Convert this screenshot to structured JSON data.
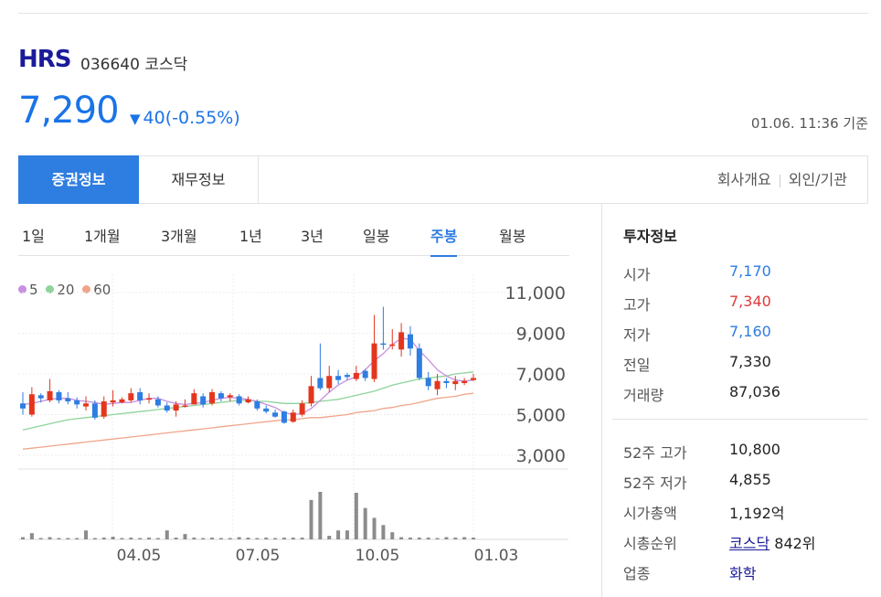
{
  "header": {
    "name": "HRS",
    "code": "036640",
    "market": "코스닥",
    "price": "7,290",
    "change_arrow": "▼",
    "change": "40(-0.55%)",
    "as_of": "01.06. 11:36 기준"
  },
  "tabs": {
    "active": "증권정보",
    "second": "재무정보",
    "right": [
      "회사개요",
      "외인/기관"
    ]
  },
  "periods": [
    "1일",
    "1개월",
    "3개월",
    "1년",
    "3년",
    "일봉",
    "주봉",
    "월봉"
  ],
  "active_period": "주봉",
  "legend": [
    {
      "label": "5",
      "color": "#c98ee0"
    },
    {
      "label": "20",
      "color": "#8ed39a"
    },
    {
      "label": "60",
      "color": "#f0a58a"
    }
  ],
  "colors": {
    "up": "#e3361d",
    "down": "#2e7de1",
    "volume": "#8c8c8c"
  },
  "chart_data": {
    "type": "candlestick",
    "x_ticks": [
      "04.05",
      "07.05",
      "10.05",
      "01.03"
    ],
    "y_ticks": [
      "11,000",
      "9,000",
      "7,000",
      "5,000",
      "3,000"
    ],
    "ylim": [
      3000,
      11000
    ],
    "candles": [
      [
        5550,
        5300,
        6100,
        5000
      ],
      [
        5000,
        6000,
        6350,
        4900
      ],
      [
        5950,
        5800,
        6050,
        5600
      ],
      [
        5700,
        6150,
        6750,
        5600
      ],
      [
        6100,
        5700,
        6200,
        5550
      ],
      [
        5800,
        5650,
        6100,
        5500
      ],
      [
        5700,
        5500,
        5850,
        5300
      ],
      [
        5400,
        5550,
        5900,
        5200
      ],
      [
        5550,
        4850,
        5700,
        4750
      ],
      [
        4900,
        5650,
        5900,
        4800
      ],
      [
        5600,
        5700,
        6200,
        5400
      ],
      [
        5600,
        5750,
        5850,
        5550
      ],
      [
        5700,
        6050,
        6300,
        5600
      ],
      [
        6100,
        5700,
        6300,
        5500
      ],
      [
        5800,
        5800,
        6050,
        5550
      ],
      [
        5750,
        5450,
        5900,
        5350
      ],
      [
        5450,
        5200,
        5600,
        5100
      ],
      [
        5200,
        5500,
        5650,
        4900
      ],
      [
        5400,
        5450,
        5750,
        5350
      ],
      [
        5500,
        6050,
        6250,
        5500
      ],
      [
        5900,
        5500,
        6050,
        5350
      ],
      [
        5550,
        6100,
        6250,
        5450
      ],
      [
        6050,
        5800,
        6150,
        5650
      ],
      [
        5850,
        5950,
        6050,
        5650
      ],
      [
        5900,
        5550,
        6000,
        5450
      ],
      [
        5600,
        5750,
        5900,
        5550
      ],
      [
        5650,
        5300,
        5750,
        5200
      ],
      [
        5300,
        5150,
        5450,
        5050
      ],
      [
        5100,
        4900,
        5250,
        4850
      ],
      [
        5150,
        4600,
        5200,
        4550
      ],
      [
        4650,
        5100,
        5250,
        4600
      ],
      [
        5000,
        5550,
        5700,
        4900
      ],
      [
        5550,
        6400,
        6900,
        5400
      ],
      [
        6800,
        6300,
        8500,
        6200
      ],
      [
        6300,
        6900,
        7400,
        6100
      ],
      [
        6900,
        6700,
        7200,
        6500
      ],
      [
        6950,
        6850,
        7050,
        6700
      ],
      [
        6750,
        7050,
        7400,
        6650
      ],
      [
        7150,
        6800,
        7250,
        6650
      ],
      [
        6750,
        8500,
        9900,
        6600
      ],
      [
        8500,
        8450,
        10300,
        8200
      ],
      [
        8400,
        8450,
        9200,
        8200
      ],
      [
        8200,
        9050,
        9500,
        7850
      ],
      [
        8950,
        8250,
        9350,
        7900
      ],
      [
        8250,
        6800,
        8500,
        6700
      ],
      [
        6800,
        6400,
        7100,
        6200
      ],
      [
        6250,
        6650,
        7000,
        5950
      ],
      [
        6650,
        6550,
        6800,
        6300
      ],
      [
        6500,
        6650,
        6900,
        6200
      ],
      [
        6550,
        6650,
        6800,
        6450
      ],
      [
        6700,
        6800,
        7000,
        6650
      ]
    ],
    "ma5": [
      5500,
      5550,
      5650,
      5750,
      5800,
      5800,
      5700,
      5650,
      5600,
      5500,
      5550,
      5600,
      5600,
      5700,
      5800,
      5800,
      5650,
      5550,
      5500,
      5550,
      5600,
      5700,
      5800,
      5850,
      5800,
      5750,
      5650,
      5500,
      5350,
      5100,
      5000,
      5050,
      5300,
      5700,
      6100,
      6450,
      6700,
      6850,
      7200,
      7650,
      8000,
      8450,
      8750,
      8700,
      8150,
      7700,
      7200,
      6900,
      6700,
      6650,
      6700
    ],
    "ma20": [
      4250,
      4350,
      4450,
      4550,
      4650,
      4750,
      4800,
      4850,
      4900,
      4950,
      5000,
      5050,
      5100,
      5150,
      5200,
      5250,
      5300,
      5350,
      5400,
      5450,
      5500,
      5550,
      5600,
      5650,
      5700,
      5700,
      5650,
      5650,
      5600,
      5550,
      5550,
      5550,
      5600,
      5650,
      5700,
      5750,
      5850,
      5950,
      6050,
      6150,
      6300,
      6450,
      6550,
      6650,
      6750,
      6800,
      6850,
      6900,
      7000,
      7050,
      7100
    ],
    "ma60": [
      3300,
      3350,
      3400,
      3450,
      3500,
      3550,
      3600,
      3650,
      3700,
      3750,
      3800,
      3850,
      3900,
      3950,
      4000,
      4050,
      4100,
      4150,
      4200,
      4250,
      4300,
      4350,
      4400,
      4450,
      4500,
      4550,
      4600,
      4650,
      4700,
      4750,
      4750,
      4800,
      4850,
      4850,
      4900,
      4950,
      5000,
      5100,
      5150,
      5200,
      5300,
      5350,
      5450,
      5500,
      5600,
      5700,
      5800,
      5850,
      5900,
      6000,
      6050
    ],
    "volume": [
      5,
      14,
      3,
      7,
      3,
      4,
      3,
      2,
      3,
      2,
      4,
      2,
      21,
      3,
      3,
      5,
      6,
      2,
      5,
      3,
      2,
      3,
      3,
      2,
      2,
      4,
      3,
      2,
      3,
      5,
      2,
      3,
      5,
      3,
      4,
      2,
      7,
      4,
      2,
      6,
      2,
      2,
      21,
      8,
      2,
      6,
      3,
      2,
      4,
      2,
      3,
      3,
      3,
      4,
      2,
      13,
      15,
      16,
      30,
      34,
      18,
      4,
      2,
      6,
      6,
      6,
      2,
      4,
      2,
      1,
      1,
      1,
      1,
      1,
      1,
      1,
      1,
      1,
      1,
      1,
      1,
      1,
      1,
      1,
      1,
      1,
      1,
      1,
      1,
      1
    ],
    "volume_bars": [
      5,
      14,
      3,
      5,
      3,
      3,
      3,
      20,
      3,
      4,
      6,
      3,
      4,
      3,
      4,
      3,
      20,
      4,
      12,
      4,
      3,
      4,
      3,
      3,
      5,
      4,
      3,
      4,
      3,
      4,
      4,
      4,
      88,
      106,
      8,
      20,
      20,
      104,
      70,
      48,
      32,
      16,
      5,
      4,
      4,
      4,
      3,
      5,
      4,
      5,
      4
    ]
  },
  "invest": {
    "title": "투자정보",
    "rows": [
      {
        "label": "시가",
        "value": "7,170",
        "tone": "blue"
      },
      {
        "label": "고가",
        "value": "7,340",
        "tone": "red"
      },
      {
        "label": "저가",
        "value": "7,160",
        "tone": "blue"
      },
      {
        "label": "전일",
        "value": "7,330",
        "tone": ""
      },
      {
        "label": "거래량",
        "value": "87,036",
        "tone": ""
      }
    ],
    "rows2": [
      {
        "label": "52주 고가",
        "value": "10,800"
      },
      {
        "label": "52주 저가",
        "value": "4,855"
      },
      {
        "label": "시가총액",
        "value": "1,192억"
      },
      {
        "label": "시총순위",
        "value": "코스닥",
        "suffix": "842위"
      },
      {
        "label": "업종",
        "value": "화학"
      }
    ]
  }
}
